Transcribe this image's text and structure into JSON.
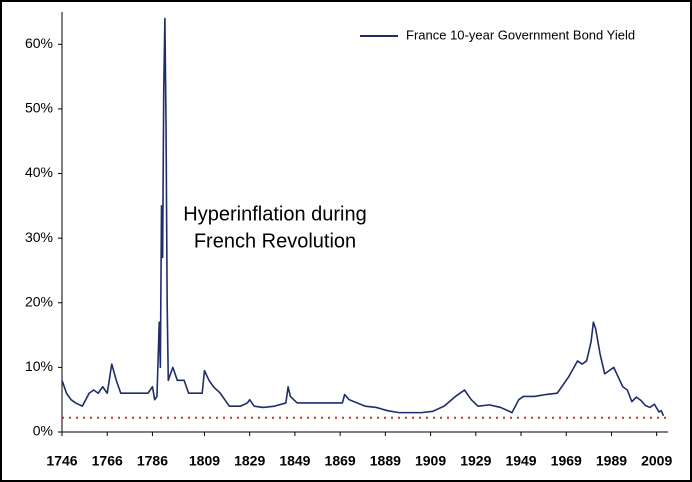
{
  "chart_data": {
    "type": "line",
    "annotation": [
      "Hyperinflation during",
      "French Revolution"
    ],
    "x": [
      1746,
      1748,
      1750,
      1752,
      1755,
      1758,
      1760,
      1762,
      1764,
      1766,
      1768,
      1770,
      1772,
      1775,
      1780,
      1784,
      1786,
      1787,
      1788,
      1789,
      1789.5,
      1790,
      1790.5,
      1791,
      1791.5,
      1792,
      1792.5,
      1793,
      1795,
      1797,
      1800,
      1802,
      1805,
      1808,
      1809,
      1811,
      1813,
      1816,
      1818,
      1820,
      1825,
      1828,
      1829,
      1831,
      1835,
      1840,
      1845,
      1846,
      1847,
      1850,
      1855,
      1860,
      1865,
      1870,
      1871,
      1873,
      1880,
      1885,
      1890,
      1895,
      1900,
      1905,
      1910,
      1915,
      1920,
      1924,
      1927,
      1930,
      1935,
      1940,
      1945,
      1948,
      1950,
      1955,
      1960,
      1965,
      1970,
      1974,
      1976,
      1978,
      1980,
      1981,
      1982,
      1984,
      1986,
      1988,
      1990,
      1992,
      1994,
      1996,
      1998,
      2000,
      2002,
      2004,
      2006,
      2008,
      2010,
      2011,
      2012
    ],
    "series": [
      {
        "name": "France 10-year Government Bond Yield",
        "color": "#1f2d6b",
        "values": [
          8,
          6,
          5,
          4.5,
          4,
          6,
          6.5,
          6,
          7,
          6,
          10.5,
          8,
          6,
          6,
          6,
          6,
          7,
          5,
          5.5,
          17,
          10,
          35,
          27,
          53,
          64,
          48,
          20,
          8,
          10,
          8,
          8,
          6,
          6,
          6,
          9.5,
          8,
          7,
          6,
          5,
          4,
          4,
          4.5,
          5,
          4,
          3.8,
          4,
          4.5,
          7,
          5.5,
          4.5,
          4.5,
          4.5,
          4.5,
          4.5,
          5.8,
          5,
          4,
          3.8,
          3.3,
          3,
          3,
          3,
          3.2,
          4,
          5.5,
          6.5,
          5,
          4,
          4.2,
          3.8,
          3,
          5,
          5.5,
          5.5,
          5.8,
          6,
          8.5,
          11,
          10.5,
          11,
          14,
          17,
          16,
          12,
          9,
          9.5,
          10,
          8.5,
          7,
          6.5,
          4.7,
          5.4,
          4.9,
          4.1,
          3.8,
          4.3,
          3.1,
          3.3,
          2.5
        ]
      }
    ],
    "reference_line": {
      "value": 2.2,
      "color": "#c0392b"
    },
    "xlim": [
      1746,
      2014
    ],
    "ylim": [
      0,
      65
    ],
    "xticks": [
      1746,
      1766,
      1786,
      1809,
      1829,
      1849,
      1869,
      1889,
      1909,
      1929,
      1949,
      1969,
      1989,
      2009
    ],
    "yticks": [
      {
        "value": 0,
        "label": "0%"
      },
      {
        "value": 10,
        "label": "10%"
      },
      {
        "value": 20,
        "label": "20%"
      },
      {
        "value": 30,
        "label": "30%"
      },
      {
        "value": 40,
        "label": "40%"
      },
      {
        "value": 50,
        "label": "50%"
      },
      {
        "value": 60,
        "label": "60%"
      }
    ],
    "legend": "upper right"
  }
}
